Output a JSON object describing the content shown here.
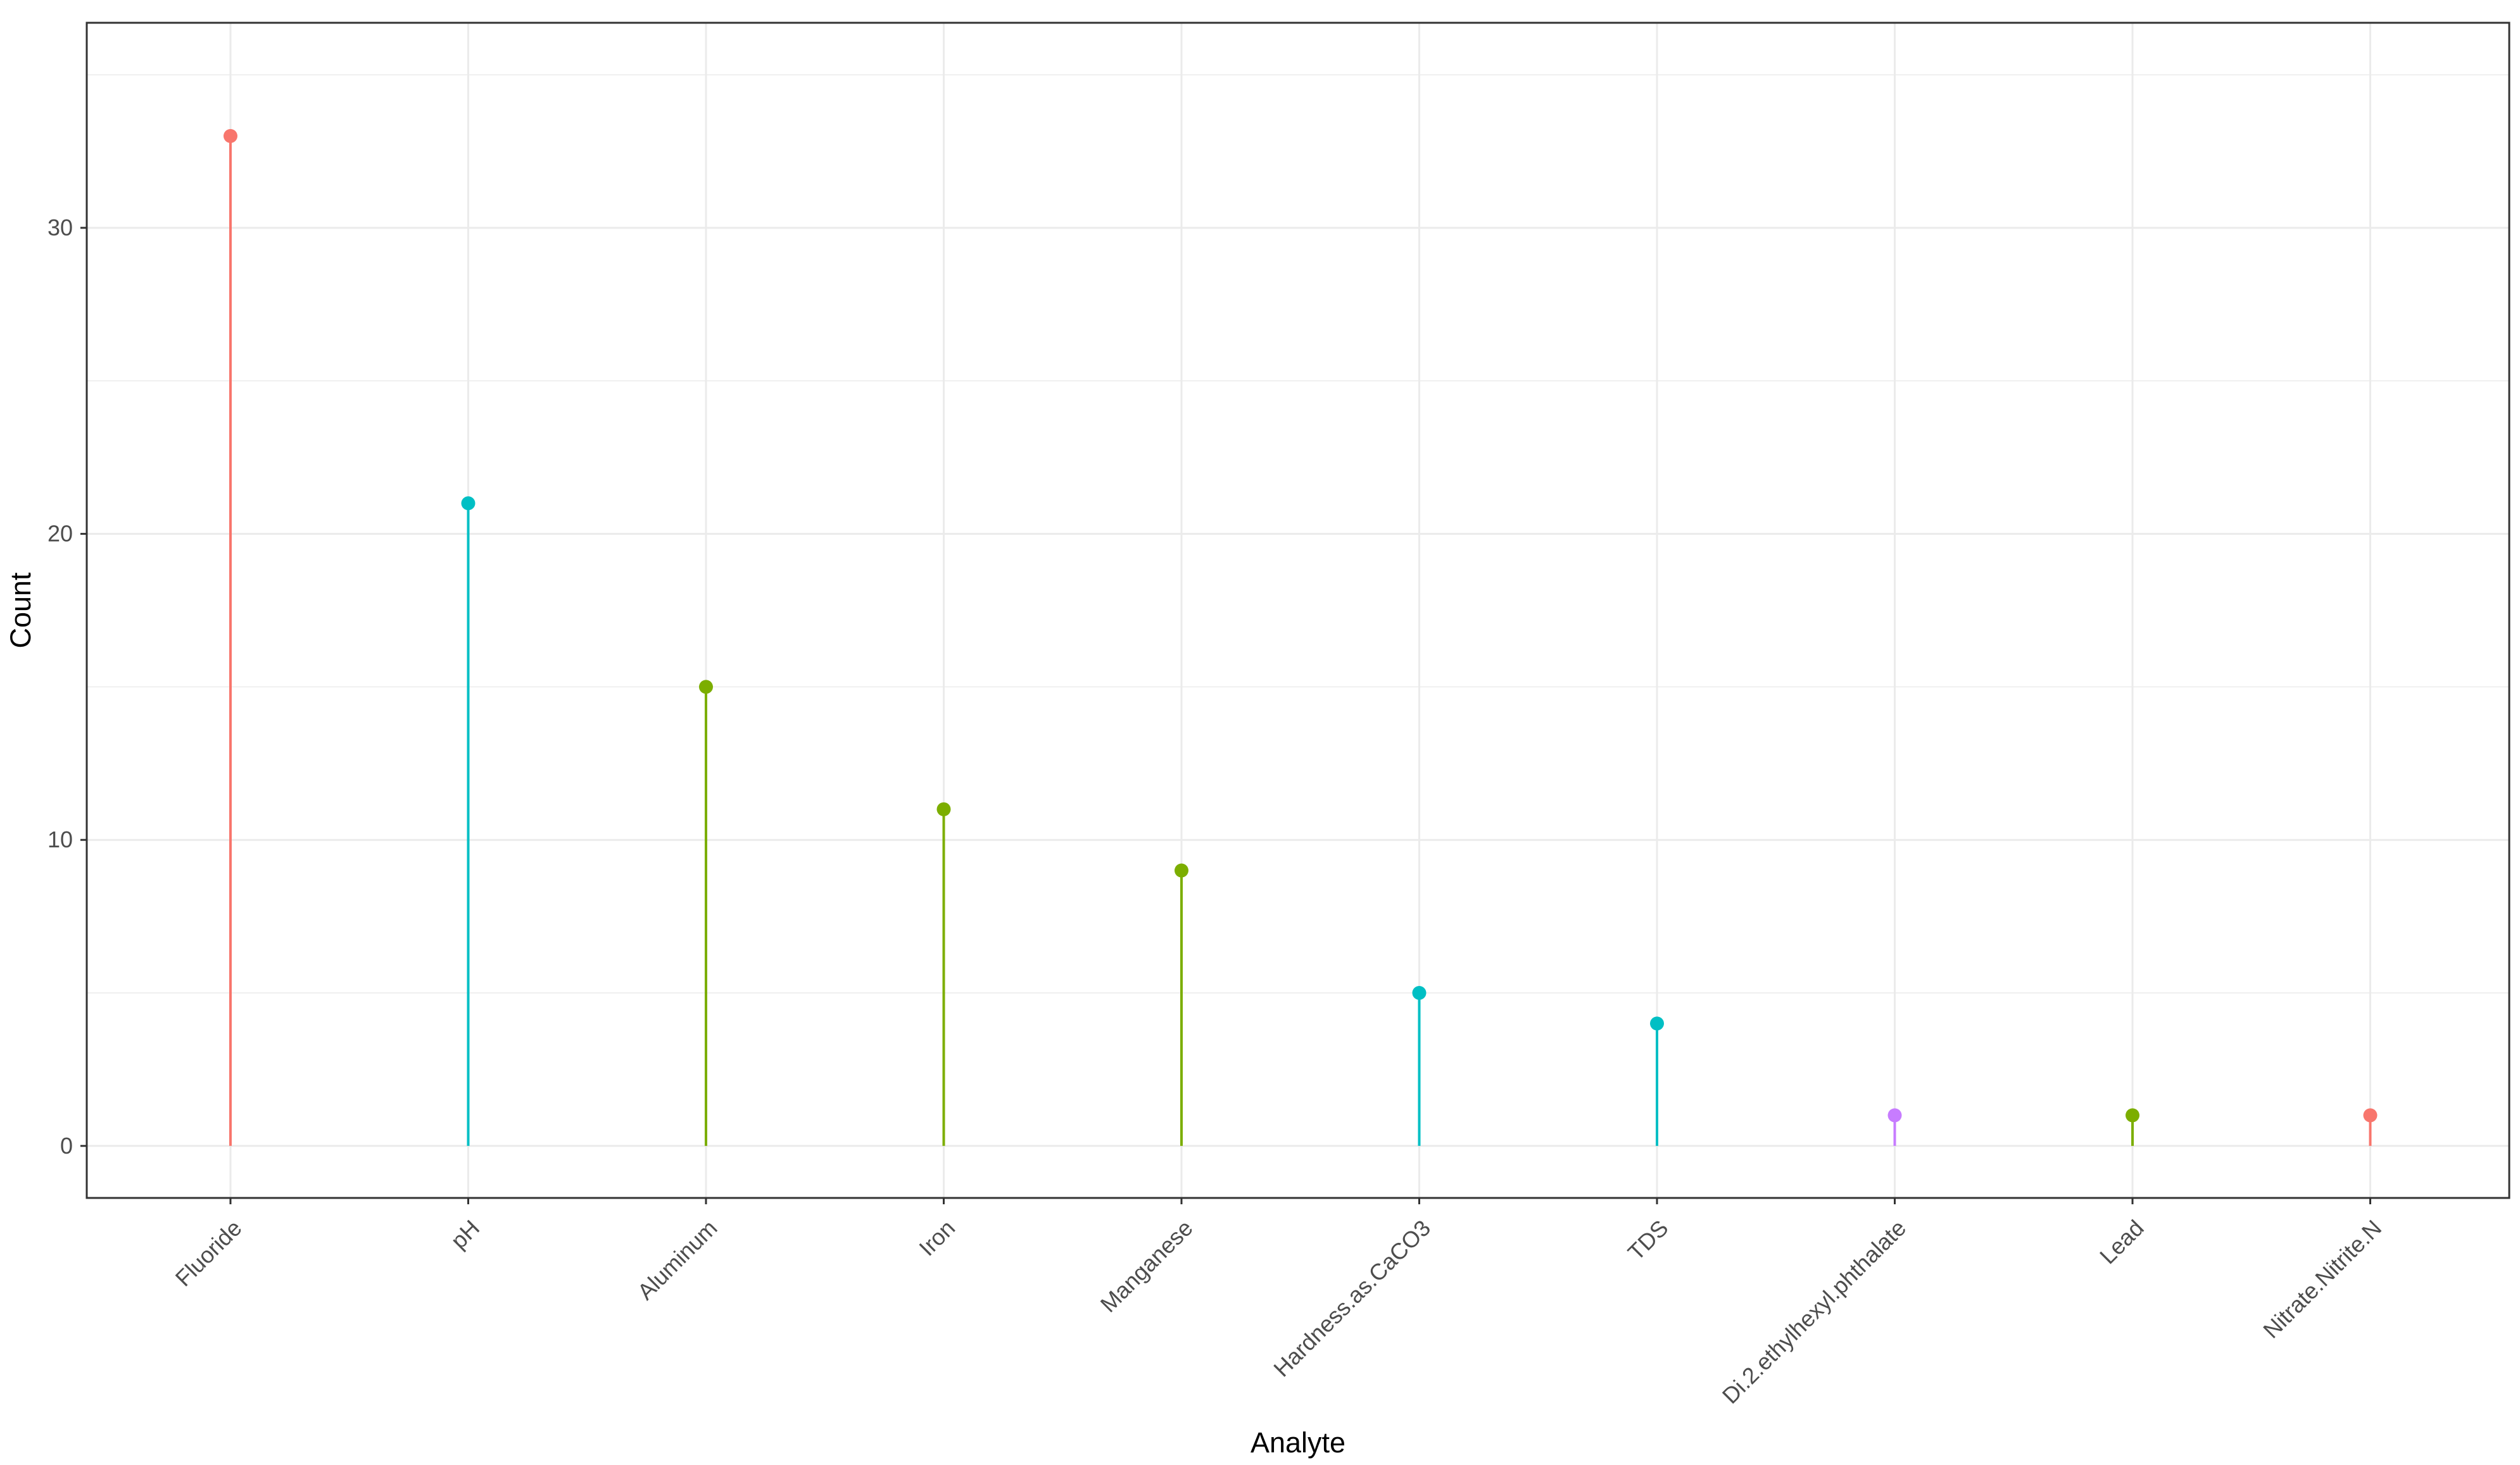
{
  "chart_data": {
    "type": "lollipop",
    "xlabel": "Analyte",
    "ylabel": "Count",
    "categories": [
      "Fluoride",
      "pH",
      "Aluminum",
      "Iron",
      "Manganese",
      "Hardness.as.CaCO3",
      "TDS",
      "Di.2.ethylhexyl.phthalate",
      "Lead",
      "Nitrate.Nitrite.N"
    ],
    "values": [
      33,
      21,
      15,
      11,
      9,
      5,
      4,
      1,
      1,
      1
    ],
    "point_colors": [
      "#f8766d",
      "#00bfc4",
      "#7cae00",
      "#7cae00",
      "#7cae00",
      "#00bfc4",
      "#00bfc4",
      "#c77cff",
      "#7cae00",
      "#f8766d"
    ],
    "ylim": [
      -1.7,
      36.7
    ],
    "y_ticks": [
      0,
      10,
      20,
      30
    ],
    "y_tick_labels": [
      "0",
      "10",
      "20",
      "30"
    ],
    "grid": true,
    "legend": "none",
    "colors": {
      "grid": "#ebebeb",
      "panel_border": "#333333",
      "tick_text": "#4d4d4d",
      "title_text": "#000000"
    }
  }
}
